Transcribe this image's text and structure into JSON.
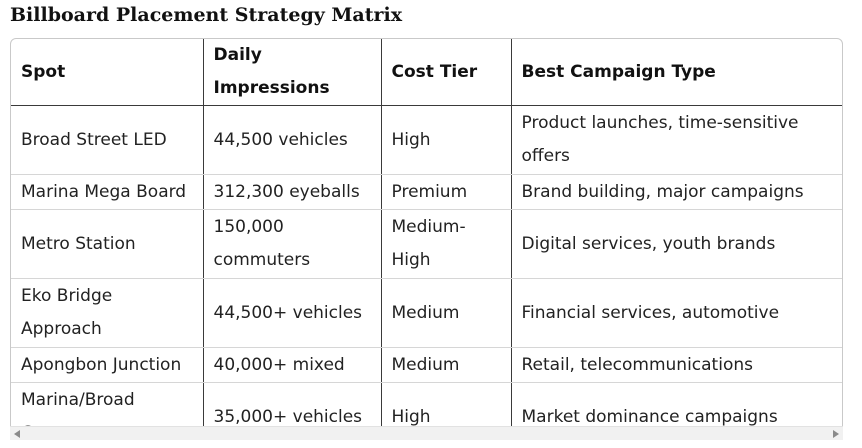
{
  "title": "Billboard Placement Strategy Matrix",
  "table": {
    "headers": [
      "Spot",
      "Daily Impressions",
      "Cost Tier",
      "Best Campaign Type"
    ],
    "rows": [
      [
        "Broad Street LED",
        "44,500 vehicles",
        "High",
        "Product launches, time-sensitive offers"
      ],
      [
        "Marina Mega Board",
        "312,300 eyeballs",
        "Premium",
        "Brand building, major campaigns"
      ],
      [
        "Metro Station",
        "150,000 commuters",
        "Medium-High",
        "Digital services, youth brands"
      ],
      [
        "Eko Bridge Approach",
        "44,500+ vehicles",
        "Medium",
        "Financial services, automotive"
      ],
      [
        "Apongbon Junction",
        "40,000+ mixed",
        "Medium",
        "Retail, telecommunications"
      ],
      [
        "Marina/Broad Corner",
        "35,000+ vehicles",
        "High",
        "Market dominance campaigns"
      ]
    ]
  },
  "scrollbar": {
    "left_icon": "scroll-left-arrow-icon",
    "right_icon": "scroll-right-arrow-icon"
  }
}
